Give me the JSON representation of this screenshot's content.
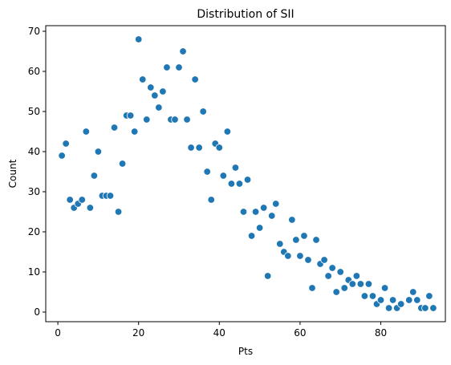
{
  "chart_data": {
    "type": "scatter",
    "title": "Distribution of SII",
    "xlabel": "Pts",
    "ylabel": "Count",
    "xlim": [
      -3,
      96
    ],
    "ylim": [
      -2.4,
      71.4
    ],
    "xticks": [
      0,
      20,
      40,
      60,
      80
    ],
    "yticks": [
      0,
      10,
      20,
      30,
      40,
      50,
      60,
      70
    ],
    "grid": false,
    "color": "#1f77b4",
    "points": [
      [
        1,
        39
      ],
      [
        2,
        42
      ],
      [
        3,
        28
      ],
      [
        4,
        26
      ],
      [
        5,
        27
      ],
      [
        6,
        28
      ],
      [
        7,
        45
      ],
      [
        8,
        26
      ],
      [
        9,
        34
      ],
      [
        10,
        40
      ],
      [
        11,
        29
      ],
      [
        12,
        29
      ],
      [
        13,
        29
      ],
      [
        14,
        46
      ],
      [
        15,
        25
      ],
      [
        16,
        37
      ],
      [
        17,
        49
      ],
      [
        18,
        49
      ],
      [
        19,
        45
      ],
      [
        20,
        68
      ],
      [
        21,
        58
      ],
      [
        22,
        48
      ],
      [
        23,
        56
      ],
      [
        24,
        54
      ],
      [
        25,
        51
      ],
      [
        26,
        55
      ],
      [
        27,
        61
      ],
      [
        28,
        48
      ],
      [
        29,
        48
      ],
      [
        30,
        61
      ],
      [
        31,
        65
      ],
      [
        32,
        48
      ],
      [
        33,
        41
      ],
      [
        34,
        58
      ],
      [
        35,
        41
      ],
      [
        36,
        50
      ],
      [
        37,
        35
      ],
      [
        38,
        28
      ],
      [
        39,
        42
      ],
      [
        40,
        41
      ],
      [
        41,
        34
      ],
      [
        42,
        45
      ],
      [
        43,
        32
      ],
      [
        44,
        36
      ],
      [
        45,
        32
      ],
      [
        46,
        25
      ],
      [
        47,
        33
      ],
      [
        48,
        19
      ],
      [
        49,
        25
      ],
      [
        50,
        21
      ],
      [
        51,
        26
      ],
      [
        52,
        9
      ],
      [
        53,
        24
      ],
      [
        54,
        27
      ],
      [
        55,
        17
      ],
      [
        56,
        15
      ],
      [
        57,
        14
      ],
      [
        58,
        23
      ],
      [
        59,
        18
      ],
      [
        60,
        14
      ],
      [
        61,
        19
      ],
      [
        62,
        13
      ],
      [
        63,
        6
      ],
      [
        64,
        18
      ],
      [
        65,
        12
      ],
      [
        66,
        13
      ],
      [
        67,
        9
      ],
      [
        68,
        11
      ],
      [
        69,
        5
      ],
      [
        70,
        10
      ],
      [
        71,
        6
      ],
      [
        72,
        8
      ],
      [
        73,
        7
      ],
      [
        74,
        9
      ],
      [
        75,
        7
      ],
      [
        76,
        4
      ],
      [
        77,
        7
      ],
      [
        78,
        4
      ],
      [
        79,
        2
      ],
      [
        80,
        3
      ],
      [
        81,
        6
      ],
      [
        82,
        1
      ],
      [
        83,
        3
      ],
      [
        84,
        1
      ],
      [
        85,
        2
      ],
      [
        87,
        3
      ],
      [
        88,
        5
      ],
      [
        89,
        3
      ],
      [
        90,
        1
      ],
      [
        91,
        1
      ],
      [
        92,
        4
      ],
      [
        93,
        1
      ]
    ]
  }
}
